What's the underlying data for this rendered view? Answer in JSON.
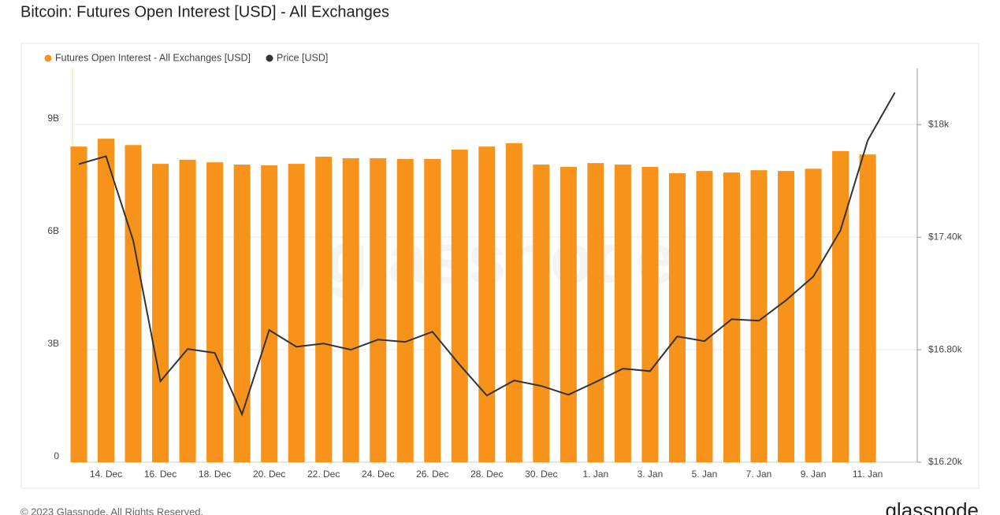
{
  "chart_data": {
    "type": "bar-line",
    "title": "Bitcoin: Futures Open Interest [USD] - All Exchanges",
    "watermark": "glassnode",
    "footer": "© 2023 Glassnode. All Rights Reserved.",
    "logo": "glassnode",
    "categories": [
      null,
      "14. Dec",
      null,
      "16. Dec",
      null,
      "18. Dec",
      null,
      "20. Dec",
      null,
      "22. Dec",
      null,
      "24. Dec",
      null,
      "26. Dec",
      null,
      "28. Dec",
      null,
      "30. Dec",
      null,
      "1. Jan",
      null,
      "3. Jan",
      null,
      "5. Jan",
      null,
      "7. Jan",
      null,
      "9. Jan",
      null,
      "11. Jan",
      null
    ],
    "series": [
      {
        "name": "Futures Open Interest - All Exchanges [USD]",
        "color": "#f7931a",
        "type": "bar",
        "values": [
          8410000000,
          8620000000,
          8450000000,
          7950000000,
          8060000000,
          7990000000,
          7930000000,
          7910000000,
          7950000000,
          8140000000,
          8100000000,
          8100000000,
          8080000000,
          8080000000,
          8330000000,
          8410000000,
          8500000000,
          7930000000,
          7870000000,
          7970000000,
          7930000000,
          7870000000,
          7700000000,
          7760000000,
          7720000000,
          7780000000,
          7760000000,
          7820000000,
          8290000000,
          8200000000,
          null
        ]
      },
      {
        "name": "Price [USD]",
        "color": "#333333",
        "type": "line",
        "axis": "y2",
        "values": [
          17790,
          17832,
          17383,
          16632,
          16804,
          16783,
          16456,
          16905,
          16816,
          16833,
          16800,
          16854,
          16842,
          16896,
          16720,
          16556,
          16636,
          16607,
          16560,
          16628,
          16699,
          16686,
          16871,
          16846,
          16963,
          16955,
          17064,
          17190,
          17437,
          17916,
          18172
        ]
      }
    ],
    "ylim": [
      0,
      10490000000
    ],
    "yticks": [
      {
        "value": 0,
        "label": "0"
      },
      {
        "value": 3000000000,
        "label": "3B"
      },
      {
        "value": 6000000000,
        "label": "6B"
      },
      {
        "value": 9000000000,
        "label": "9B"
      }
    ],
    "y2lim": [
      16200,
      18300
    ],
    "y2ticks": [
      {
        "value": 16200,
        "label": "$16.20k"
      },
      {
        "value": 16800,
        "label": "$16.80k"
      },
      {
        "value": 17400,
        "label": "$17.40k"
      },
      {
        "value": 18000,
        "label": "$18k"
      }
    ],
    "grid": true
  }
}
